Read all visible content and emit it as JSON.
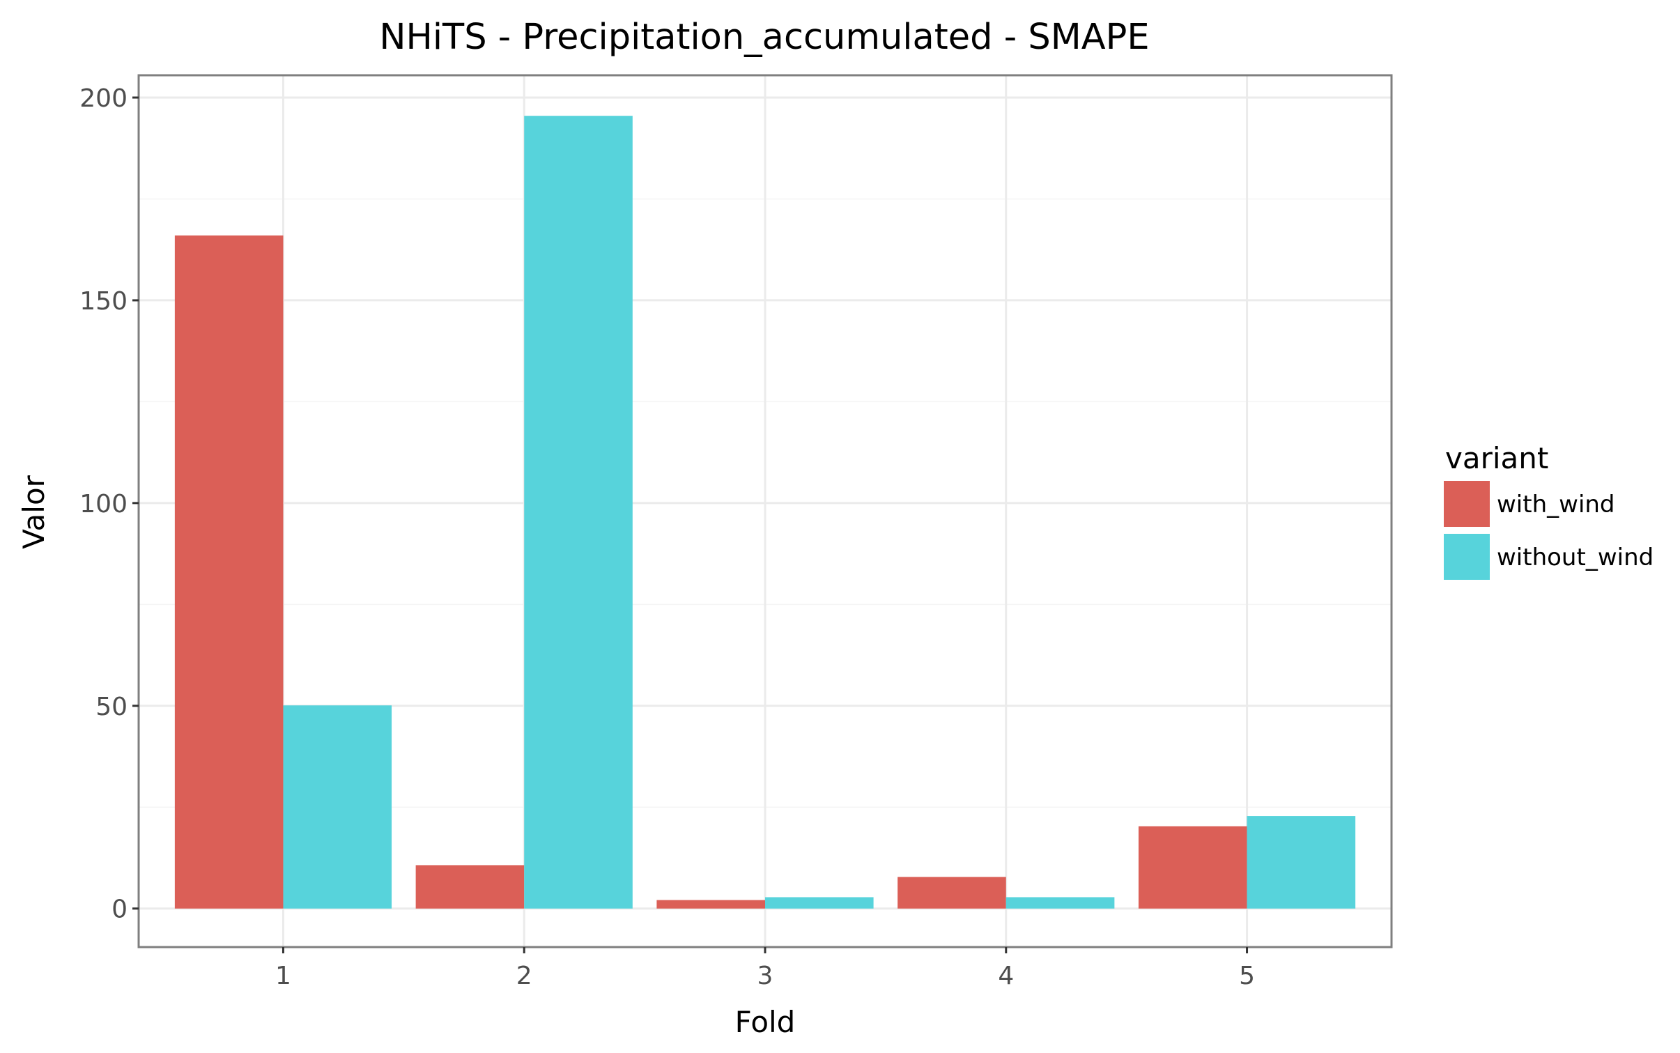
{
  "chart_data": {
    "type": "bar",
    "title": "NHiTS - Precipitation_accumulated - SMAPE",
    "xlabel": "Fold",
    "ylabel": "Valor",
    "categories": [
      "1",
      "2",
      "3",
      "4",
      "5"
    ],
    "yticks": [
      0,
      50,
      100,
      150,
      200
    ],
    "ylim": [
      -9.5,
      205.5
    ],
    "series": [
      {
        "name": "with_wind",
        "color": "#DB5F57",
        "values": [
          166,
          10.7,
          2.1,
          7.8,
          20.3
        ]
      },
      {
        "name": "without_wind",
        "color": "#57D3DB",
        "values": [
          50.1,
          195.5,
          2.8,
          2.8,
          22.8
        ]
      }
    ],
    "legend": {
      "title": "variant",
      "position": "right"
    },
    "grid": true
  }
}
